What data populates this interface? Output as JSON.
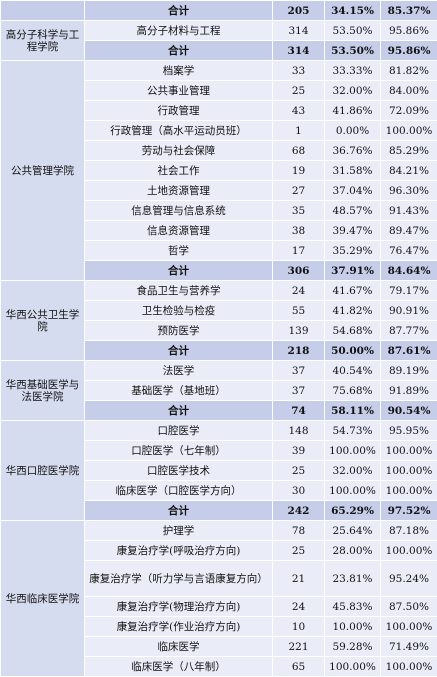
{
  "groups": [
    {
      "college": "",
      "rows": [],
      "subtotal": {
        "major": "合计",
        "count": "205",
        "rate1": "34.15%",
        "rate2": "85.37%"
      }
    },
    {
      "college": "高分子科学与工程学院",
      "rows": [
        {
          "major": "高分子材料与工程",
          "count": "314",
          "rate1": "53.50%",
          "rate2": "95.86%"
        }
      ],
      "subtotal": {
        "major": "合计",
        "count": "314",
        "rate1": "53.50%",
        "rate2": "95.86%"
      }
    },
    {
      "college": "公共管理学院",
      "rows": [
        {
          "major": "档案学",
          "count": "33",
          "rate1": "33.33%",
          "rate2": "81.82%"
        },
        {
          "major": "公共事业管理",
          "count": "25",
          "rate1": "32.00%",
          "rate2": "84.00%"
        },
        {
          "major": "行政管理",
          "count": "43",
          "rate1": "41.86%",
          "rate2": "72.09%"
        },
        {
          "major": "行政管理（高水平运动员班）",
          "count": "1",
          "rate1": "0.00%",
          "rate2": "100.00%"
        },
        {
          "major": "劳动与社会保障",
          "count": "68",
          "rate1": "36.76%",
          "rate2": "85.29%"
        },
        {
          "major": "社会工作",
          "count": "19",
          "rate1": "31.58%",
          "rate2": "84.21%"
        },
        {
          "major": "土地资源管理",
          "count": "27",
          "rate1": "37.04%",
          "rate2": "96.30%"
        },
        {
          "major": "信息管理与信息系统",
          "count": "35",
          "rate1": "48.57%",
          "rate2": "91.43%"
        },
        {
          "major": "信息资源管理",
          "count": "38",
          "rate1": "39.47%",
          "rate2": "89.47%"
        },
        {
          "major": "哲学",
          "count": "17",
          "rate1": "35.29%",
          "rate2": "76.47%"
        }
      ],
      "subtotal": {
        "major": "合计",
        "count": "306",
        "rate1": "37.91%",
        "rate2": "84.64%"
      }
    },
    {
      "college": "华西公共卫生学院",
      "rows": [
        {
          "major": "食品卫生与营养学",
          "count": "24",
          "rate1": "41.67%",
          "rate2": "79.17%"
        },
        {
          "major": "卫生检验与检疫",
          "count": "55",
          "rate1": "41.82%",
          "rate2": "90.91%"
        },
        {
          "major": "预防医学",
          "count": "139",
          "rate1": "54.68%",
          "rate2": "87.77%"
        }
      ],
      "subtotal": {
        "major": "合计",
        "count": "218",
        "rate1": "50.00%",
        "rate2": "87.61%"
      }
    },
    {
      "college": "华西基础医学与法医学院",
      "rows": [
        {
          "major": "法医学",
          "count": "37",
          "rate1": "40.54%",
          "rate2": "89.19%"
        },
        {
          "major": "基础医学（基地班）",
          "count": "37",
          "rate1": "75.68%",
          "rate2": "91.89%"
        }
      ],
      "subtotal": {
        "major": "合计",
        "count": "74",
        "rate1": "58.11%",
        "rate2": "90.54%"
      }
    },
    {
      "college": "华西口腔医学院",
      "rows": [
        {
          "major": "口腔医学",
          "count": "148",
          "rate1": "54.73%",
          "rate2": "95.95%"
        },
        {
          "major": "口腔医学（七年制）",
          "count": "39",
          "rate1": "100.00%",
          "rate2": "100.00%"
        },
        {
          "major": "口腔医学技术",
          "count": "25",
          "rate1": "32.00%",
          "rate2": "100.00%"
        },
        {
          "major": "临床医学（口腔医学方向）",
          "count": "30",
          "rate1": "100.00%",
          "rate2": "100.00%"
        }
      ],
      "subtotal": {
        "major": "合计",
        "count": "242",
        "rate1": "65.29%",
        "rate2": "97.52%"
      }
    },
    {
      "college": "华西临床医学院",
      "rows": [
        {
          "major": "护理学",
          "count": "78",
          "rate1": "25.64%",
          "rate2": "87.18%"
        },
        {
          "major": "康复治疗学(呼吸治疗方向)",
          "count": "25",
          "rate1": "28.00%",
          "rate2": "100.00%"
        },
        {
          "major": "康复治疗学（听力学与言语康复方向）",
          "count": "21",
          "rate1": "23.81%",
          "rate2": "95.24%"
        },
        {
          "major": "康复治疗学(物理治疗方向)",
          "count": "24",
          "rate1": "45.83%",
          "rate2": "87.50%"
        },
        {
          "major": "康复治疗学(作业治疗方向)",
          "count": "10",
          "rate1": "10.00%",
          "rate2": "100.00%"
        },
        {
          "major": "临床医学",
          "count": "221",
          "rate1": "59.28%",
          "rate2": "71.49%"
        },
        {
          "major": "临床医学（八年制）",
          "count": "65",
          "rate1": "100.00%",
          "rate2": "100.00%"
        }
      ],
      "subtotal": null
    }
  ]
}
